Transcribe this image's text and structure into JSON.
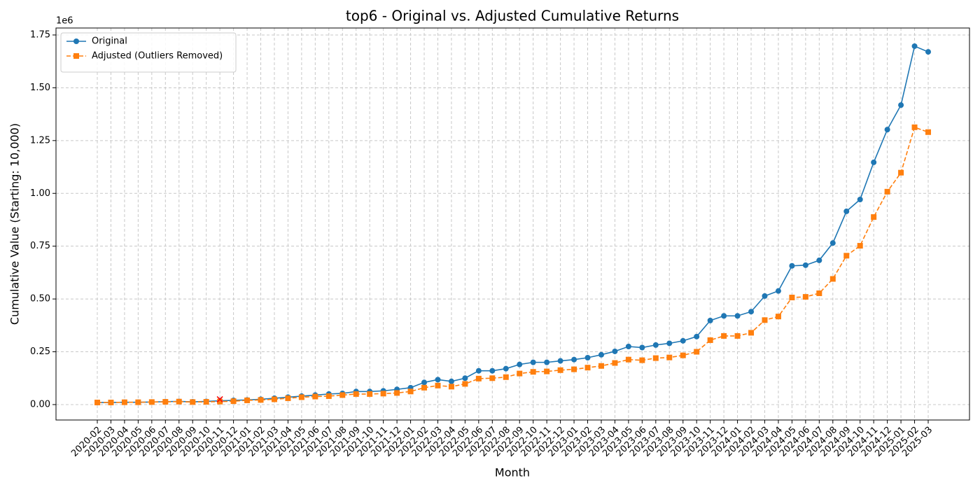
{
  "chart_data": {
    "type": "line",
    "title": "top6 - Original vs. Adjusted Cumulative Returns",
    "xlabel": "Month",
    "ylabel": "Cumulative Value (Starting: 10,000)",
    "y_offset_label": "1e6",
    "categories": [
      "2020-02",
      "2020-03",
      "2020-04",
      "2020-05",
      "2020-06",
      "2020-07",
      "2020-08",
      "2020-09",
      "2020-10",
      "2020-11",
      "2020-12",
      "2021-01",
      "2021-02",
      "2021-03",
      "2021-04",
      "2021-05",
      "2021-06",
      "2021-07",
      "2021-08",
      "2021-09",
      "2021-10",
      "2021-11",
      "2021-12",
      "2022-01",
      "2022-02",
      "2022-03",
      "2022-04",
      "2022-05",
      "2022-06",
      "2022-07",
      "2022-08",
      "2022-09",
      "2022-10",
      "2022-11",
      "2022-12",
      "2023-01",
      "2023-02",
      "2023-03",
      "2023-04",
      "2023-05",
      "2023-06",
      "2023-07",
      "2023-08",
      "2023-09",
      "2023-10",
      "2023-11",
      "2023-12",
      "2024-01",
      "2024-02",
      "2024-03",
      "2024-04",
      "2024-05",
      "2024-06",
      "2024-07",
      "2024-08",
      "2024-09",
      "2024-10",
      "2024-11",
      "2024-12",
      "2025-01",
      "2025-02",
      "2025-03"
    ],
    "series": [
      {
        "name": "Original",
        "color": "#1f77b4",
        "marker": "circle",
        "dash": false,
        "values": [
          0.01,
          0.01,
          0.011,
          0.011,
          0.012,
          0.014,
          0.015,
          0.013,
          0.015,
          0.018,
          0.02,
          0.022,
          0.025,
          0.03,
          0.035,
          0.04,
          0.045,
          0.05,
          0.053,
          0.062,
          0.062,
          0.065,
          0.072,
          0.08,
          0.105,
          0.118,
          0.11,
          0.125,
          0.16,
          0.16,
          0.17,
          0.19,
          0.2,
          0.2,
          0.207,
          0.213,
          0.222,
          0.236,
          0.252,
          0.275,
          0.27,
          0.282,
          0.29,
          0.302,
          0.322,
          0.398,
          0.42,
          0.42,
          0.44,
          0.514,
          0.538,
          0.657,
          0.66,
          0.683,
          0.765,
          0.915,
          0.971,
          1.147,
          1.302,
          1.418,
          1.697,
          1.67
        ]
      },
      {
        "name": "Adjusted (Outliers Removed)",
        "color": "#ff7f0e",
        "marker": "square",
        "dash": true,
        "values": [
          0.01,
          0.01,
          0.011,
          0.011,
          0.012,
          0.013,
          0.014,
          0.012,
          0.013,
          0.014,
          0.016,
          0.02,
          0.022,
          0.025,
          0.03,
          0.035,
          0.038,
          0.04,
          0.045,
          0.05,
          0.05,
          0.052,
          0.055,
          0.062,
          0.08,
          0.09,
          0.085,
          0.098,
          0.123,
          0.125,
          0.13,
          0.147,
          0.155,
          0.157,
          0.163,
          0.167,
          0.175,
          0.183,
          0.197,
          0.213,
          0.21,
          0.22,
          0.223,
          0.233,
          0.25,
          0.305,
          0.325,
          0.325,
          0.34,
          0.4,
          0.417,
          0.507,
          0.51,
          0.527,
          0.595,
          0.705,
          0.752,
          0.888,
          1.008,
          1.098,
          1.313,
          1.29
        ]
      }
    ],
    "outliers": {
      "categories": [
        "2020-11"
      ],
      "values": [
        0.025
      ],
      "color": "#ff0000"
    },
    "ylim": [
      -0.073,
      1.783
    ],
    "yticks": [
      {
        "value": 0,
        "label": "0.00"
      },
      {
        "value": 0.25,
        "label": "0.25"
      },
      {
        "value": 0.5,
        "label": "0.50"
      },
      {
        "value": 0.75,
        "label": "0.75"
      },
      {
        "value": 1,
        "label": "1.00"
      },
      {
        "value": 1.25,
        "label": "1.25"
      },
      {
        "value": 1.5,
        "label": "1.50"
      },
      {
        "value": 1.75,
        "label": "1.75"
      }
    ],
    "grid": true,
    "legend": "upper-left"
  }
}
